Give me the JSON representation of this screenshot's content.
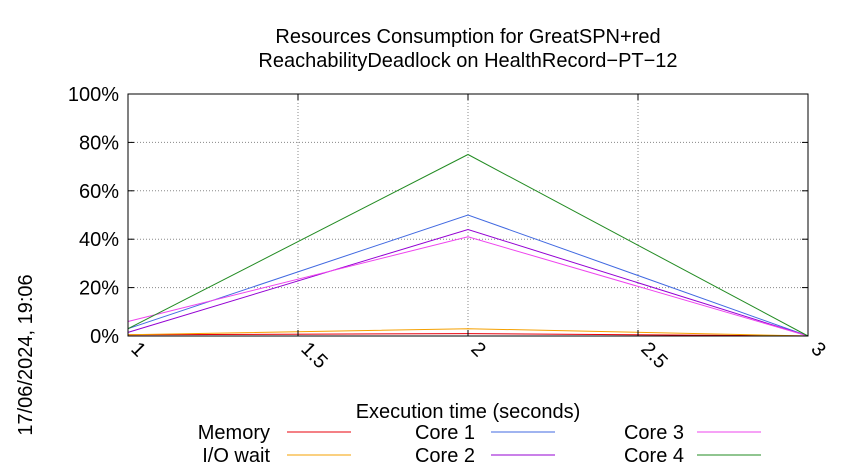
{
  "side_label": "17/06/2024, 19:06",
  "chart_data": {
    "type": "line",
    "title_line1": "Resources Consumption for GreatSPN+red",
    "title_line2": "ReachabilityDeadlock on HealthRecord−PT−12",
    "xlabel": "Execution time (seconds)",
    "ylabel": "",
    "x": [
      1,
      2,
      3
    ],
    "xlim": [
      1,
      3
    ],
    "ylim": [
      0,
      100
    ],
    "x_ticks": [
      "1",
      "1.5",
      "2",
      "2.5",
      "3"
    ],
    "y_ticks": [
      "0%",
      "20%",
      "40%",
      "60%",
      "80%",
      "100%"
    ],
    "grid": true,
    "legend_position": "bottom",
    "series": [
      {
        "name": "Memory",
        "color": "#e8000b",
        "values": [
          0.5,
          1,
          0
        ]
      },
      {
        "name": "I/O wait",
        "color": "#f5a000",
        "values": [
          0.5,
          3,
          0
        ]
      },
      {
        "name": "Core 1",
        "color": "#4169e1",
        "values": [
          3,
          50,
          0
        ]
      },
      {
        "name": "Core 2",
        "color": "#9400d3",
        "values": [
          1.5,
          44,
          0
        ]
      },
      {
        "name": "Core 3",
        "color": "#ee44ee",
        "values": [
          6,
          41,
          0
        ]
      },
      {
        "name": "Core 4",
        "color": "#228b22",
        "values": [
          3,
          75,
          0
        ]
      }
    ]
  }
}
